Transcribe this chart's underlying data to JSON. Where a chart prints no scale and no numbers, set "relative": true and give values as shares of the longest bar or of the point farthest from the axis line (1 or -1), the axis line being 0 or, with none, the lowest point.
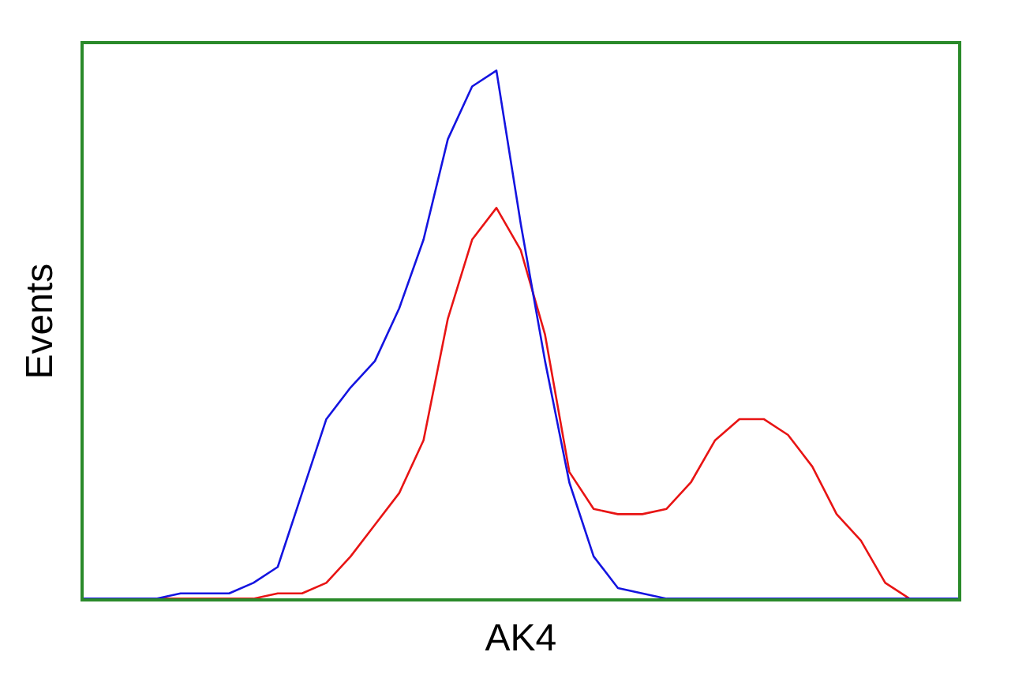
{
  "chart_data": {
    "type": "line",
    "relative": true,
    "xlabel": "AK4",
    "ylabel": "Events",
    "grid": false,
    "legend": false,
    "marker": "none",
    "line_style": "solid",
    "categories": [
      null,
      null,
      null,
      null,
      null,
      null,
      null,
      null,
      null,
      null,
      null,
      null,
      null,
      null,
      null,
      null,
      null,
      null,
      null,
      null,
      null,
      null,
      null,
      null,
      null,
      null,
      null,
      null,
      null,
      null,
      null,
      null,
      null,
      null,
      null,
      null,
      null
    ],
    "series": [
      {
        "color": "#1414e0",
        "values": [
          0,
          0,
          0,
          0,
          0.01,
          0.01,
          0.01,
          0.03,
          0.06,
          0.2,
          0.34,
          0.4,
          0.45,
          0.55,
          0.68,
          0.87,
          0.97,
          1,
          0.71,
          0.45,
          0.22,
          0.08,
          0.02,
          0.01,
          0,
          0,
          0,
          0,
          0,
          0,
          0,
          0,
          0,
          0,
          0,
          0,
          0
        ]
      },
      {
        "color": "#e81414",
        "values": [
          null,
          null,
          0,
          0,
          0,
          0,
          0,
          0,
          0.01,
          0.01,
          0.03,
          0.08,
          0.14,
          0.2,
          0.3,
          0.53,
          0.68,
          0.74,
          0.66,
          0.5,
          0.24,
          0.17,
          0.16,
          0.16,
          0.17,
          0.22,
          0.3,
          0.34,
          0.34,
          0.31,
          0.25,
          0.16,
          0.11,
          0.03,
          0,
          0,
          0
        ]
      }
    ]
  }
}
